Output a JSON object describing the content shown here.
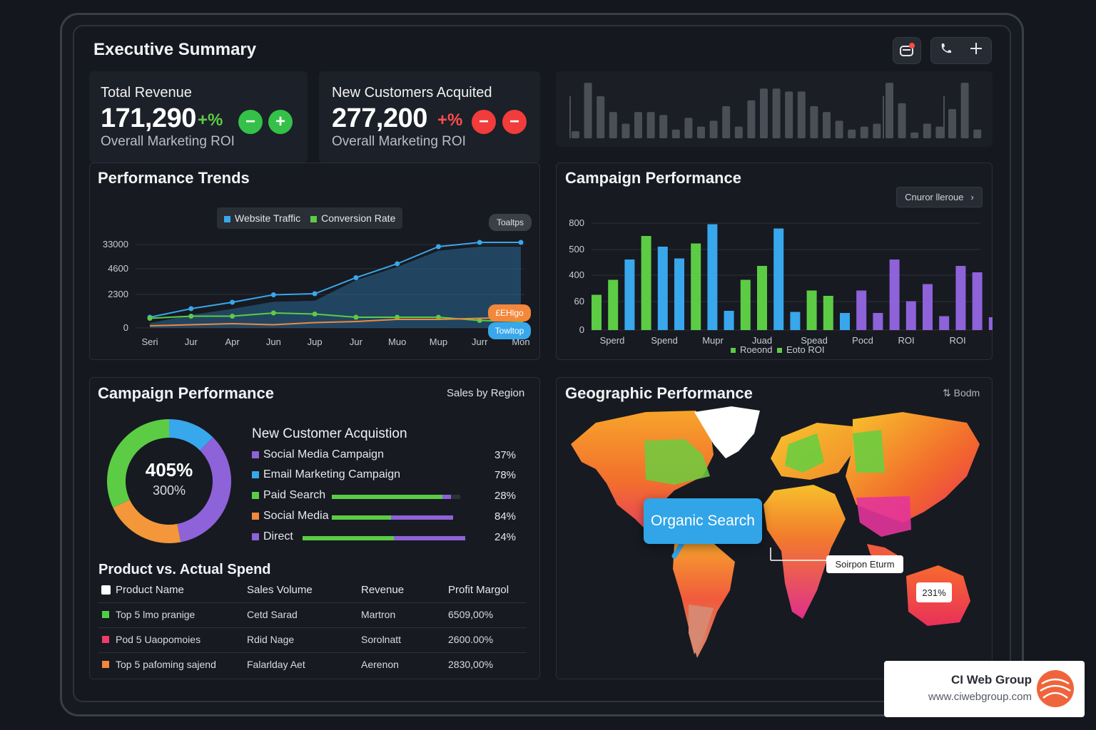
{
  "header": {
    "title": "Executive Summary"
  },
  "kpis": [
    {
      "label": "Total Revenue",
      "value": "171,290",
      "delta": "+%",
      "sub": "Overall Marketing ROI",
      "btn1": "−",
      "btn2": "+"
    },
    {
      "label": "New Customers Acquited",
      "value": "277,200",
      "delta": "+%",
      "sub": "Overall Marketing ROI",
      "btn1": "−",
      "btn2": "−"
    }
  ],
  "trends": {
    "title": "Performance Trends",
    "legend": [
      "Website Traffic",
      "Conversion Rate"
    ],
    "tooltips": [
      "Toaltps",
      "£EHlgo",
      "Towltop"
    ],
    "chart_data": {
      "type": "line",
      "categories": [
        "Seri",
        "Jur",
        "Apr",
        "Jun",
        "Jup",
        "Jur",
        "Muo",
        "Mup",
        "Jurr",
        "Mon"
      ],
      "yticks": [
        "0",
        "2300",
        "4600",
        "33000"
      ],
      "series": [
        {
          "name": "Website Traffic",
          "values": [
            0.1,
            0.18,
            0.24,
            0.31,
            0.32,
            0.47,
            0.6,
            0.76,
            0.8,
            0.8
          ]
        },
        {
          "name": "Conversion Rate",
          "values": [
            0.09,
            0.11,
            0.11,
            0.14,
            0.13,
            0.1,
            0.1,
            0.1,
            0.07,
            0.06
          ]
        }
      ]
    }
  },
  "campaign_bars": {
    "title": "Campaign Performance",
    "dropdown": "Cnuror lleroue",
    "legend": [
      "Roeond",
      "Eoto ROI"
    ],
    "chart_data": {
      "type": "bar",
      "yticks": [
        "0",
        "60",
        "400",
        "500",
        "800"
      ],
      "xlabels": [
        "Sperd",
        "Spend",
        "Mupr",
        "Juad",
        "Spead",
        "Pocd",
        "ROI",
        "ROI"
      ],
      "values": [
        {
          "v": 0.33,
          "c": "g"
        },
        {
          "v": 0.47,
          "c": "g"
        },
        {
          "v": 0.66,
          "c": "b"
        },
        {
          "v": 0.88,
          "c": "g"
        },
        {
          "v": 0.78,
          "c": "b"
        },
        {
          "v": 0.67,
          "c": "b"
        },
        {
          "v": 0.81,
          "c": "g"
        },
        {
          "v": 0.99,
          "c": "b"
        },
        {
          "v": 0.18,
          "c": "b"
        },
        {
          "v": 0.47,
          "c": "g"
        },
        {
          "v": 0.6,
          "c": "g"
        },
        {
          "v": 0.95,
          "c": "b"
        },
        {
          "v": 0.17,
          "c": "b"
        },
        {
          "v": 0.37,
          "c": "g"
        },
        {
          "v": 0.32,
          "c": "g"
        },
        {
          "v": 0.16,
          "c": "b"
        },
        {
          "v": 0.37,
          "c": "p"
        },
        {
          "v": 0.16,
          "c": "p"
        },
        {
          "v": 0.66,
          "c": "p"
        },
        {
          "v": 0.27,
          "c": "p"
        },
        {
          "v": 0.43,
          "c": "p"
        },
        {
          "v": 0.13,
          "c": "p"
        },
        {
          "v": 0.6,
          "c": "p"
        },
        {
          "v": 0.54,
          "c": "p"
        },
        {
          "v": 0.12,
          "c": "p"
        }
      ]
    }
  },
  "mini_bars": {
    "chart_data": {
      "type": "bar",
      "values": [
        0.12,
        0.95,
        0.72,
        0.45,
        0.25,
        0.45,
        0.45,
        0.4,
        0.15,
        0.35,
        0.2,
        0.3,
        0.55,
        0.2,
        0.65,
        0.85,
        0.85,
        0.8,
        0.8,
        0.55,
        0.45,
        0.3,
        0.15,
        0.2,
        0.25,
        0.95,
        0.6,
        0.1,
        0.25,
        0.2,
        0.5,
        0.95,
        0.15
      ]
    }
  },
  "donut_panel": {
    "title": "Campaign Performance",
    "side_label": "Sales by Region",
    "center_value": "405%",
    "center_sub": "300%",
    "acq_title": "New Customer Acquistion",
    "rows": [
      {
        "label": "Social Media Campaign",
        "pct": "37%",
        "color": "#8e62d9",
        "bar": null
      },
      {
        "label": "Email Marketing Campaign",
        "pct": "78%",
        "color": "#38a7ec",
        "bar": null
      },
      {
        "label": "Paid Search",
        "pct": "28%",
        "color": "#5ccc45",
        "bar": [
          0.86,
          0.07
        ]
      },
      {
        "label": "Social Media",
        "pct": "84%",
        "color": "#f3873a",
        "bar": [
          0.49,
          0.51
        ]
      },
      {
        "label": "Direct",
        "pct": "24%",
        "color": "#8e62d9",
        "bar": [
          0.56,
          0.44
        ]
      }
    ],
    "chart_data": {
      "type": "pie",
      "values": [
        0.125,
        0.345,
        0.21,
        0.32
      ],
      "colors": [
        "#38a7ec",
        "#8e62d9",
        "#f3973a",
        "#5ccc45"
      ]
    }
  },
  "table": {
    "title": "Product vs. Actual Spend",
    "headers": [
      "Product Name",
      "Sales Volume",
      "Revenue",
      "Profit Margol"
    ],
    "rows": [
      {
        "color": "#4fce45",
        "cells": [
          "Top 5 lmo pranige",
          "Cetd Sarad",
          "Martron",
          "6509,00%"
        ]
      },
      {
        "color": "#ef3c6a",
        "cells": [
          "Pod 5 Uaopomoies",
          "Rdid Nage",
          "Sorolnatt",
          "2600.00%"
        ]
      },
      {
        "color": "#f3873a",
        "cells": [
          "Top 5 pafoming sajend",
          "Falarlday Aet",
          "Aerenon",
          "2830,00%"
        ]
      }
    ]
  },
  "geo": {
    "title": "Geographic Performance",
    "side_label": "Bodm",
    "tooltip": "Organic Search",
    "label_africa": "Soirpon Eturm",
    "label_aus": "231%"
  },
  "brand": {
    "name": "CI Web Group",
    "url": "www.ciwebgroup.com"
  }
}
